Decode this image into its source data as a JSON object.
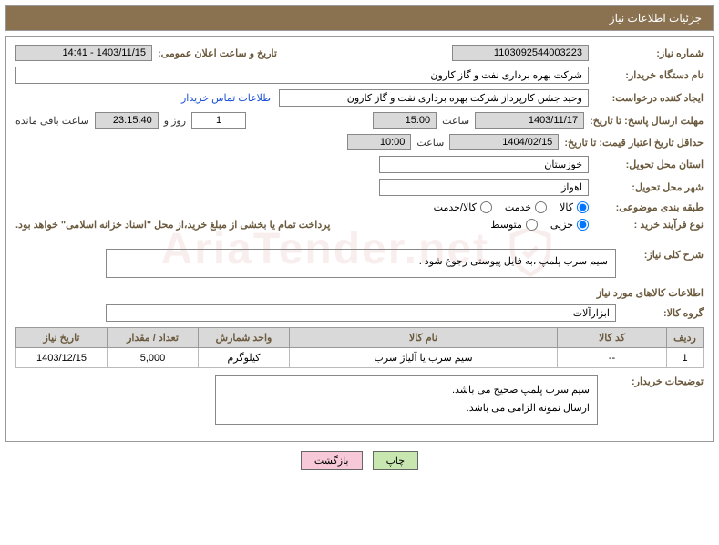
{
  "header": {
    "title": "جزئیات اطلاعات نیاز"
  },
  "watermark": "AriaTender.net",
  "labels": {
    "need_no": "شماره نیاز:",
    "announce_dt": "تاریخ و ساعت اعلان عمومی:",
    "buyer_org": "نام دستگاه خریدار:",
    "requester": "ایجاد کننده درخواست:",
    "contact_link": "اطلاعات تماس خریدار",
    "reply_deadline": "مهلت ارسال پاسخ: تا تاریخ:",
    "hour": "ساعت",
    "day_and": "روز و",
    "remaining": "ساعت باقی مانده",
    "price_validity": "حداقل تاریخ اعتبار قیمت: تا تاریخ:",
    "province": "استان محل تحویل:",
    "city": "شهر محل تحویل:",
    "category": "طبقه بندی موضوعی:",
    "process_type": "نوع فرآیند خرید :",
    "payment_note": "پرداخت تمام یا بخشی از مبلغ خرید،از محل \"اسناد خزانه اسلامی\" خواهد بود.",
    "general_desc": "شرح کلی نیاز:",
    "goods_info": "اطلاعات کالاهای مورد نیاز",
    "goods_group": "گروه کالا:",
    "buyer_notes": "توضیحات خریدار:"
  },
  "fields": {
    "need_no": "1103092544003223",
    "announce_dt": "1403/11/15 - 14:41",
    "buyer_org": "شرکت بهره برداری نفت و گاز کارون",
    "requester": "وحید جشن کارپرداز شرکت بهره برداری نفت و گاز کارون",
    "reply_date": "1403/11/17",
    "reply_time": "15:00",
    "remaining_days": "1",
    "remaining_time": "23:15:40",
    "validity_date": "1404/02/15",
    "validity_time": "10:00",
    "province": "خوزستان",
    "city": "اهواز",
    "general_desc": "سیم سرب پلمپ ،به فایل پیوستی رجوع شود .",
    "goods_group": "ابزارآلات",
    "buyer_notes_line1": "سیم سرب پلمپ صحیح می باشد.",
    "buyer_notes_line2": "ارسال نمونه الزامی می باشد."
  },
  "radios": {
    "category": {
      "options": [
        "کالا",
        "خدمت",
        "کالا/خدمت"
      ],
      "selected": 0
    },
    "process": {
      "options": [
        "جزیی",
        "متوسط"
      ],
      "selected": 0
    }
  },
  "table": {
    "headers": [
      "ردیف",
      "کد کالا",
      "نام کالا",
      "واحد شمارش",
      "تعداد / مقدار",
      "تاریخ نیاز"
    ],
    "col_widths": [
      "40px",
      "120px",
      "auto",
      "100px",
      "100px",
      "100px"
    ],
    "rows": [
      [
        "1",
        "--",
        "سیم سرب یا آلیاژ سرب",
        "کیلوگرم",
        "5,000",
        "1403/12/15"
      ]
    ]
  },
  "buttons": {
    "print": "چاپ",
    "back": "بازگشت"
  }
}
